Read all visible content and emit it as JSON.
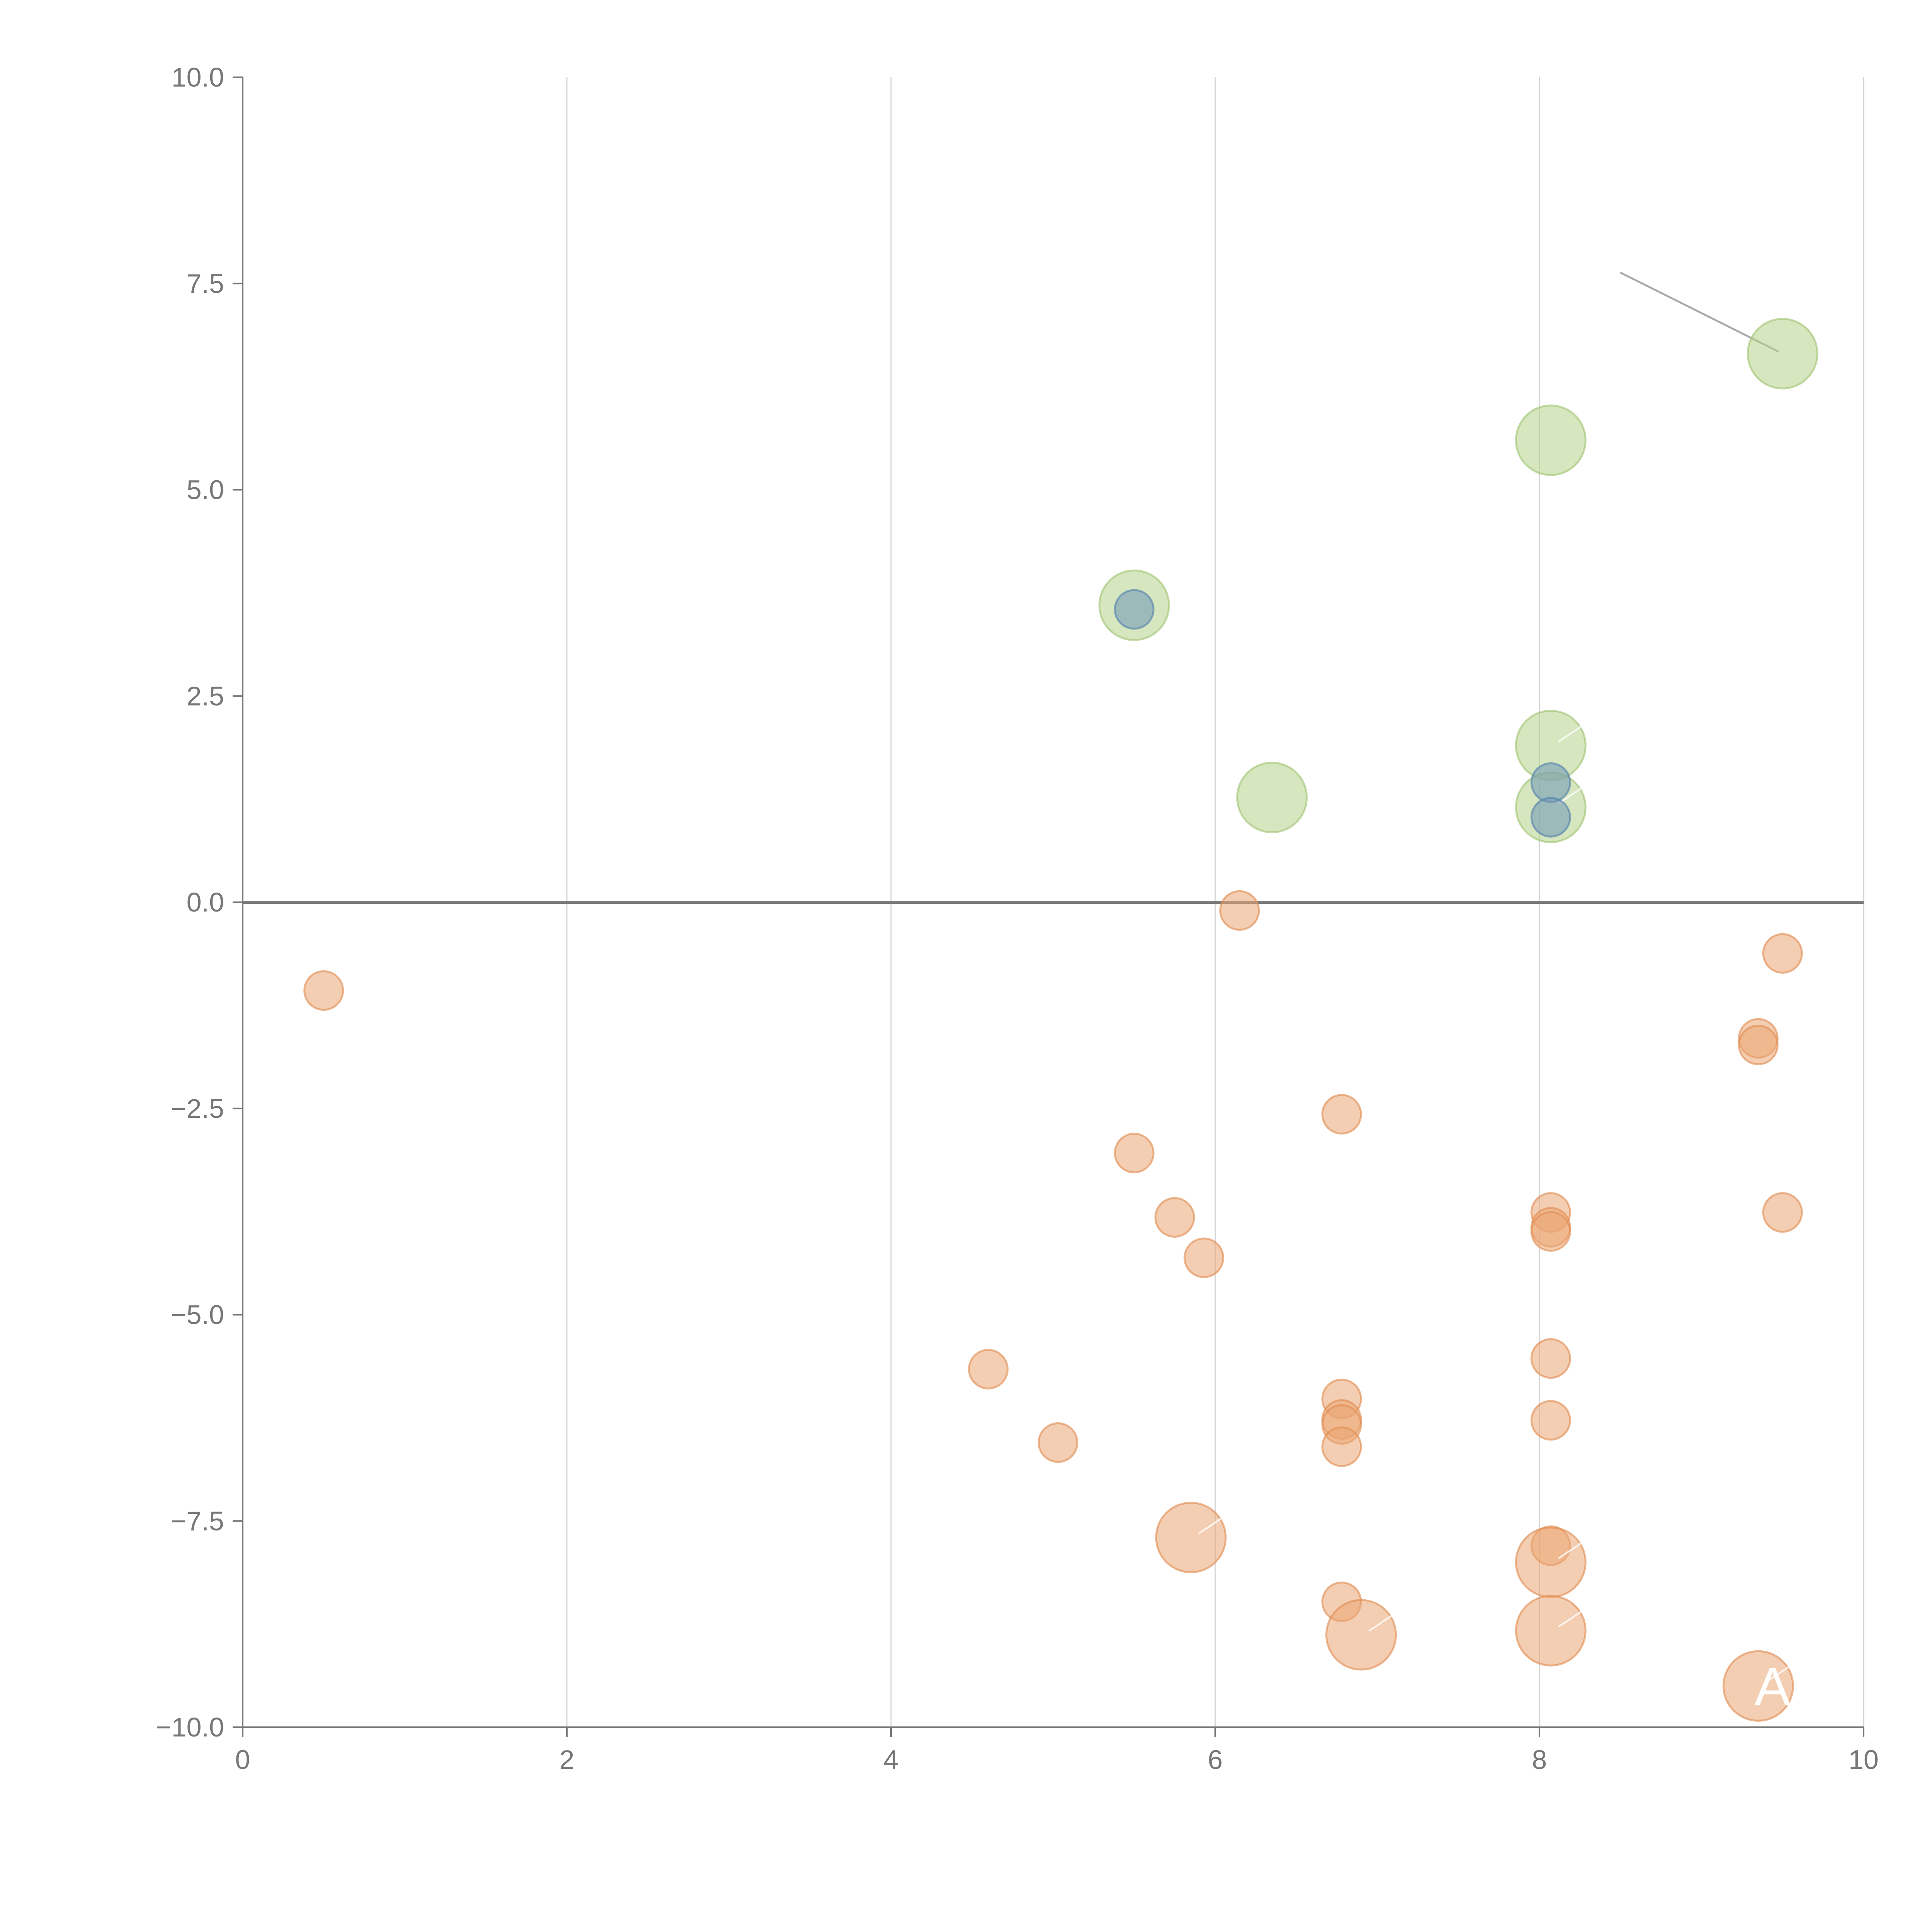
{
  "chart_data": {
    "type": "scatter",
    "title": "",
    "xlabel": "",
    "ylabel": "",
    "xlim": [
      0,
      10
    ],
    "ylim": [
      -10,
      10
    ],
    "x_ticks": [
      0,
      2,
      4,
      6,
      8,
      10
    ],
    "x_tick_labels": [
      "0",
      "2",
      "4",
      "6",
      "8",
      "10"
    ],
    "y_ticks": [
      -10,
      -7.5,
      -5,
      -2.5,
      0,
      2.5,
      5,
      7.5,
      10
    ],
    "y_tick_labels": [
      "−10.0",
      "−7.5",
      "−5.0",
      "−2.5",
      "0.0",
      "2.5",
      "5.0",
      "7.5",
      "10.0"
    ],
    "grid": "vertical",
    "reference_line_y": 0,
    "colors": {
      "green": "#b5d18a",
      "green_stroke": "#9fc36e",
      "blue": "#6f95b8",
      "blue_stroke": "#4f7fab",
      "orange": "#eba572",
      "orange_stroke": "#e08a4e",
      "grid": "#d4d4d4",
      "axis": "#777777"
    },
    "series": [
      {
        "name": "green",
        "color": "green",
        "points": [
          {
            "x": 9.5,
            "y": 6.65,
            "size": 3
          },
          {
            "x": 8.07,
            "y": 5.6,
            "size": 3
          },
          {
            "x": 5.5,
            "y": 3.6,
            "size": 3
          },
          {
            "x": 8.07,
            "y": 1.9,
            "size": 3
          },
          {
            "x": 6.35,
            "y": 1.27,
            "size": 3
          },
          {
            "x": 8.07,
            "y": 1.15,
            "size": 3
          }
        ]
      },
      {
        "name": "blue",
        "color": "blue",
        "points": [
          {
            "x": 5.5,
            "y": 3.55,
            "size": 1
          },
          {
            "x": 8.07,
            "y": 1.45,
            "size": 1
          },
          {
            "x": 8.07,
            "y": 1.03,
            "size": 1
          }
        ]
      },
      {
        "name": "orange",
        "color": "orange",
        "points": [
          {
            "x": 6.15,
            "y": -0.1,
            "size": 1
          },
          {
            "x": 9.5,
            "y": -0.62,
            "size": 1
          },
          {
            "x": 0.5,
            "y": -1.07,
            "size": 1
          },
          {
            "x": 9.35,
            "y": -1.65,
            "size": 1
          },
          {
            "x": 9.35,
            "y": -1.73,
            "size": 1
          },
          {
            "x": 6.78,
            "y": -2.57,
            "size": 1
          },
          {
            "x": 5.5,
            "y": -3.04,
            "size": 1
          },
          {
            "x": 5.75,
            "y": -3.82,
            "size": 1
          },
          {
            "x": 9.5,
            "y": -3.76,
            "size": 1
          },
          {
            "x": 8.07,
            "y": -3.76,
            "size": 1
          },
          {
            "x": 8.07,
            "y": -3.94,
            "size": 1
          },
          {
            "x": 8.07,
            "y": -3.99,
            "size": 1
          },
          {
            "x": 5.93,
            "y": -4.31,
            "size": 1
          },
          {
            "x": 8.07,
            "y": -5.53,
            "size": 1
          },
          {
            "x": 4.6,
            "y": -5.66,
            "size": 1
          },
          {
            "x": 6.78,
            "y": -6.02,
            "size": 1
          },
          {
            "x": 6.78,
            "y": -6.27,
            "size": 1
          },
          {
            "x": 6.78,
            "y": -6.33,
            "size": 1
          },
          {
            "x": 8.07,
            "y": -6.28,
            "size": 1
          },
          {
            "x": 5.03,
            "y": -6.55,
            "size": 1
          },
          {
            "x": 6.78,
            "y": -6.6,
            "size": 1
          },
          {
            "x": 5.85,
            "y": -7.7,
            "size": 3
          },
          {
            "x": 8.07,
            "y": -7.8,
            "size": 1
          },
          {
            "x": 8.07,
            "y": -8.0,
            "size": 3
          },
          {
            "x": 6.78,
            "y": -8.48,
            "size": 1
          },
          {
            "x": 6.9,
            "y": -8.88,
            "size": 3
          },
          {
            "x": 8.07,
            "y": -8.83,
            "size": 3
          },
          {
            "x": 9.35,
            "y": -9.5,
            "size": 3
          }
        ]
      }
    ],
    "annotations": [
      {
        "text": "A",
        "x": 9.35,
        "y": -9.5,
        "color": "#ffffff"
      }
    ]
  }
}
